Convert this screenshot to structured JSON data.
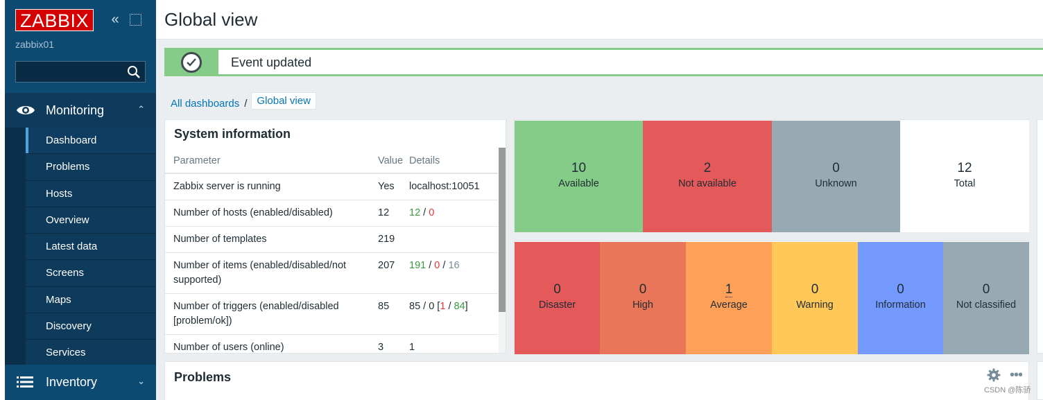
{
  "sidebar": {
    "logo": "ZABBIX",
    "server_name": "zabbix01",
    "search_placeholder": "",
    "monitoring_label": "Monitoring",
    "monitoring_items": [
      "Dashboard",
      "Problems",
      "Hosts",
      "Overview",
      "Latest data",
      "Screens",
      "Maps",
      "Discovery",
      "Services"
    ],
    "inventory_label": "Inventory"
  },
  "header": {
    "title": "Global view"
  },
  "message": {
    "text": "Event updated"
  },
  "breadcrumb": {
    "all_dashboards": "All dashboards",
    "separator": "/",
    "current": "Global view"
  },
  "system_information": {
    "title": "System information",
    "columns": {
      "parameter": "Parameter",
      "value": "Value",
      "details": "Details"
    },
    "rows": [
      {
        "parameter": "Zabbix server is running",
        "value": "Yes",
        "details": "localhost:10051"
      },
      {
        "parameter": "Number of hosts (enabled/disabled)",
        "value": "12",
        "d1": "12",
        "sep1": " / ",
        "d2": "0"
      },
      {
        "parameter": "Number of templates",
        "value": "219"
      },
      {
        "parameter": "Number of items (enabled/disabled/not supported)",
        "value": "207",
        "d1": "191",
        "sep1": " / ",
        "d2": "0",
        "sep2": " / ",
        "d3": "16"
      },
      {
        "parameter": "Number of triggers (enabled/disabled [problem/ok])",
        "value": "85",
        "pre": "85 / 0 [",
        "d1": "1",
        "sep1": " / ",
        "d2": "84",
        "post": "]"
      },
      {
        "parameter": "Number of users (online)",
        "value": "3",
        "details": "1"
      }
    ]
  },
  "host_availability": {
    "cells": [
      {
        "count": "10",
        "label": "Available"
      },
      {
        "count": "2",
        "label": "Not available"
      },
      {
        "count": "0",
        "label": "Unknown"
      },
      {
        "count": "12",
        "label": "Total"
      }
    ]
  },
  "problems_by_severity": {
    "cells": [
      {
        "count": "0",
        "label": "Disaster"
      },
      {
        "count": "0",
        "label": "High"
      },
      {
        "count": "1",
        "label": "Average"
      },
      {
        "count": "0",
        "label": "Warning"
      },
      {
        "count": "0",
        "label": "Information"
      },
      {
        "count": "0",
        "label": "Not classified"
      }
    ]
  },
  "problems": {
    "title": "Problems"
  },
  "watermark": "CSDN @陈骄",
  "colors": {
    "available": "#86cc89",
    "not_available": "#e45959",
    "unknown": "#97aab3",
    "disaster": "#e45959",
    "high": "#e97659",
    "average": "#ffa059",
    "warning": "#ffc859",
    "information": "#7499ff",
    "not_classified": "#97aab3",
    "logo": "#d40000"
  }
}
